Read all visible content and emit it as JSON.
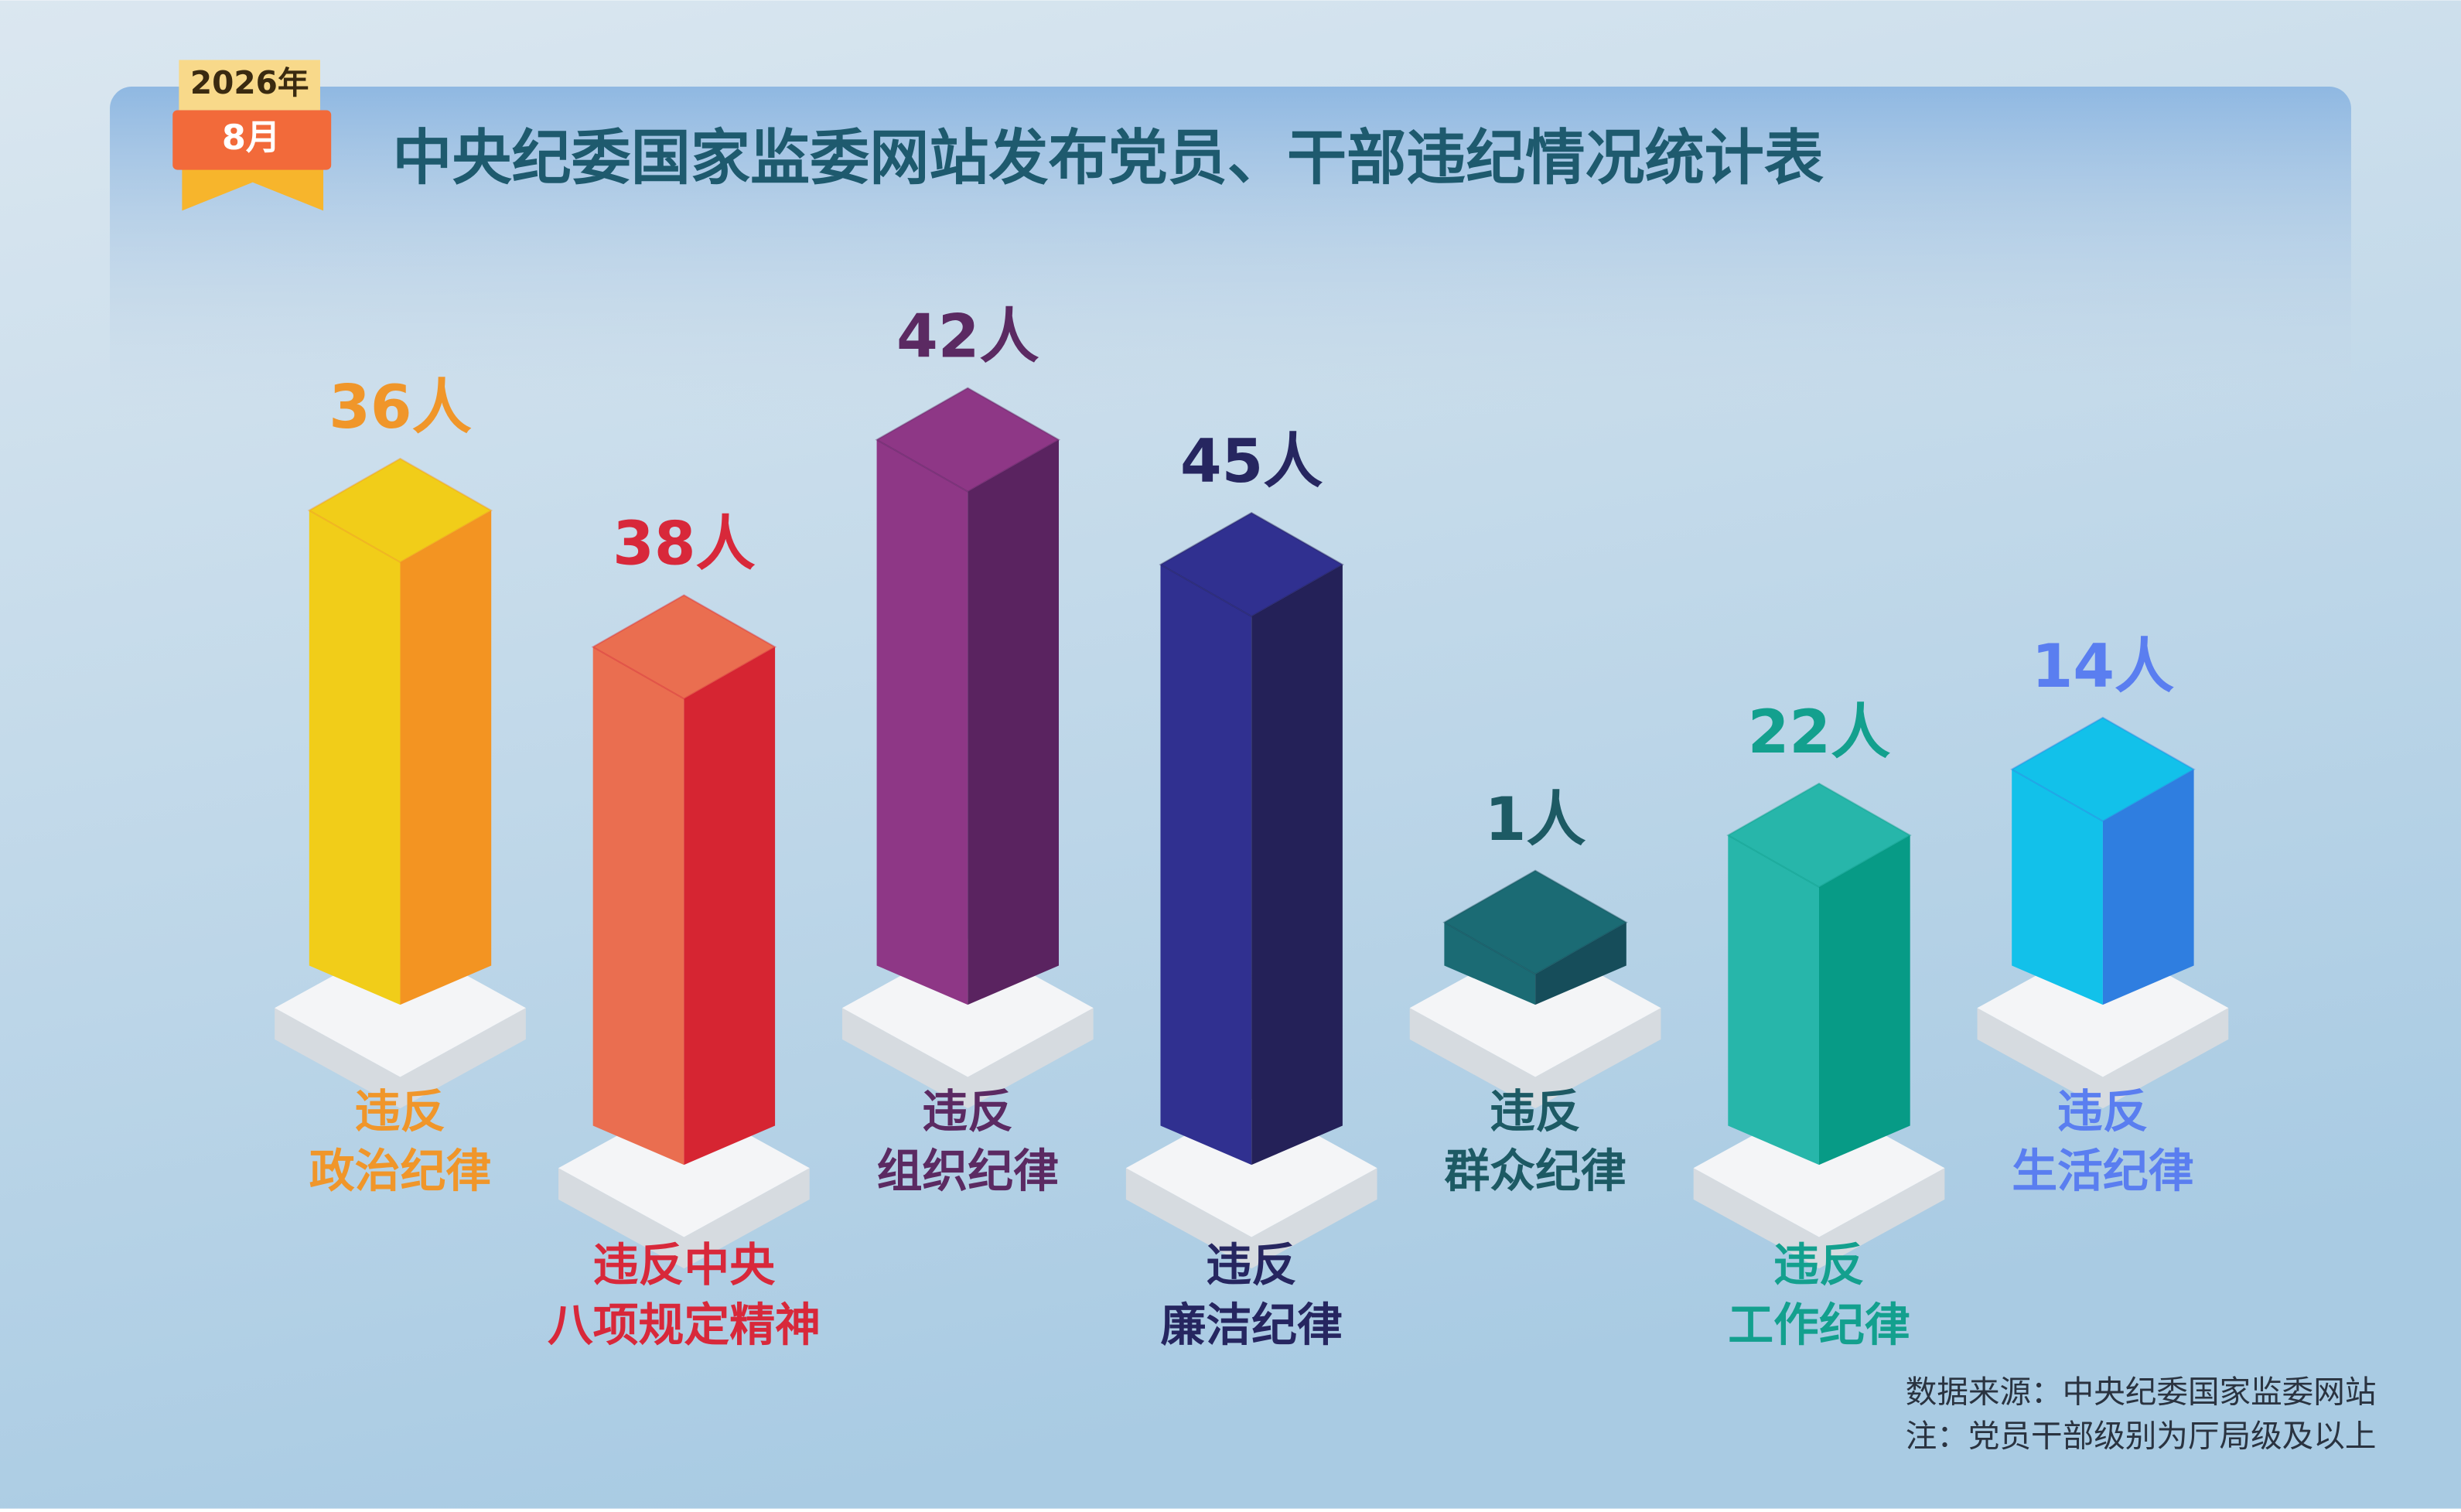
{
  "badge": {
    "year": "2026年",
    "month": "8月"
  },
  "chart_data": {
    "type": "iso-bar",
    "title": "中央纪委国家监委网站发布党员、干部违纪情况统计表",
    "categories": [
      [
        "违反",
        "政治纪律"
      ],
      [
        "违反中央",
        "八项规定精神"
      ],
      [
        "违反",
        "组织纪律"
      ],
      [
        "违反",
        "廉洁纪律"
      ],
      [
        "违反",
        "群众纪律"
      ],
      [
        "违反",
        "工作纪律"
      ],
      [
        "违反",
        "生活纪律"
      ]
    ],
    "values": [
      36,
      38,
      42,
      45,
      1,
      22,
      14
    ],
    "value_labels": [
      "36人",
      "38人",
      "42人",
      "45人",
      "1人",
      "22人",
      "14人"
    ],
    "colors": [
      [
        "#f1cd19",
        "#f39422"
      ],
      [
        "#ea6e50",
        "#d62532"
      ],
      [
        "#8e3786",
        "#5a2360"
      ],
      [
        "#303090",
        "#242158"
      ],
      [
        "#1b6b74",
        "#164d5a"
      ],
      [
        "#27b6aa",
        "#079b86"
      ],
      [
        "#12c1ea",
        "#2f7ee0"
      ]
    ],
    "label_colors": [
      "#f0962a",
      "#d8283a",
      "#5b2a62",
      "#262660",
      "#1d5a64",
      "#13a08e",
      "#5a7ef0"
    ]
  },
  "source": [
    "数据来源：中央纪委国家监委网站",
    "注：党员干部级别为厅局级及以上"
  ]
}
